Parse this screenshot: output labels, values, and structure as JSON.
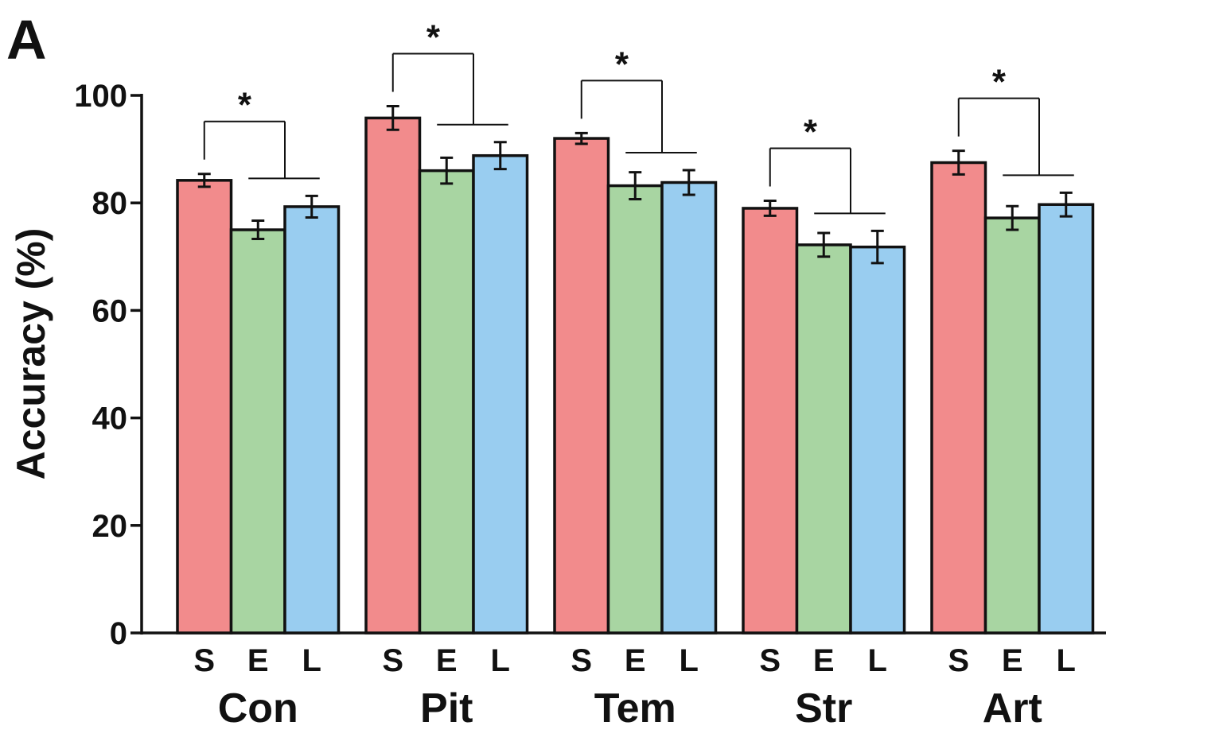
{
  "panel_label": "A",
  "chart_data": {
    "type": "bar",
    "ylabel": "Accuracy (%)",
    "xlabel": "",
    "ylim": [
      0,
      100
    ],
    "yticks": [
      0,
      20,
      40,
      60,
      80,
      100
    ],
    "categories": [
      "Con",
      "Pit",
      "Tem",
      "Str",
      "Art"
    ],
    "bar_labels": [
      "S",
      "E",
      "L"
    ],
    "series": [
      {
        "key": "S",
        "color": "#F28B8C",
        "values": [
          84.2,
          95.8,
          92.0,
          79.0,
          87.5
        ],
        "errors": [
          1.2,
          2.2,
          1.0,
          1.4,
          2.2
        ]
      },
      {
        "key": "E",
        "color": "#A8D5A2",
        "values": [
          75.0,
          86.0,
          83.2,
          72.2,
          77.2
        ],
        "errors": [
          1.7,
          2.4,
          2.5,
          2.2,
          2.2
        ]
      },
      {
        "key": "L",
        "color": "#99CDF0",
        "values": [
          79.3,
          88.8,
          83.8,
          71.8,
          79.7
        ],
        "errors": [
          2.0,
          2.5,
          2.3,
          3.0,
          2.2
        ]
      }
    ],
    "significance": [
      {
        "group": "Con",
        "label": "*"
      },
      {
        "group": "Pit",
        "label": "*"
      },
      {
        "group": "Tem",
        "label": "*"
      },
      {
        "group": "Str",
        "label": "*"
      },
      {
        "group": "Art",
        "label": "*"
      }
    ],
    "grid": false,
    "legend": "none"
  }
}
